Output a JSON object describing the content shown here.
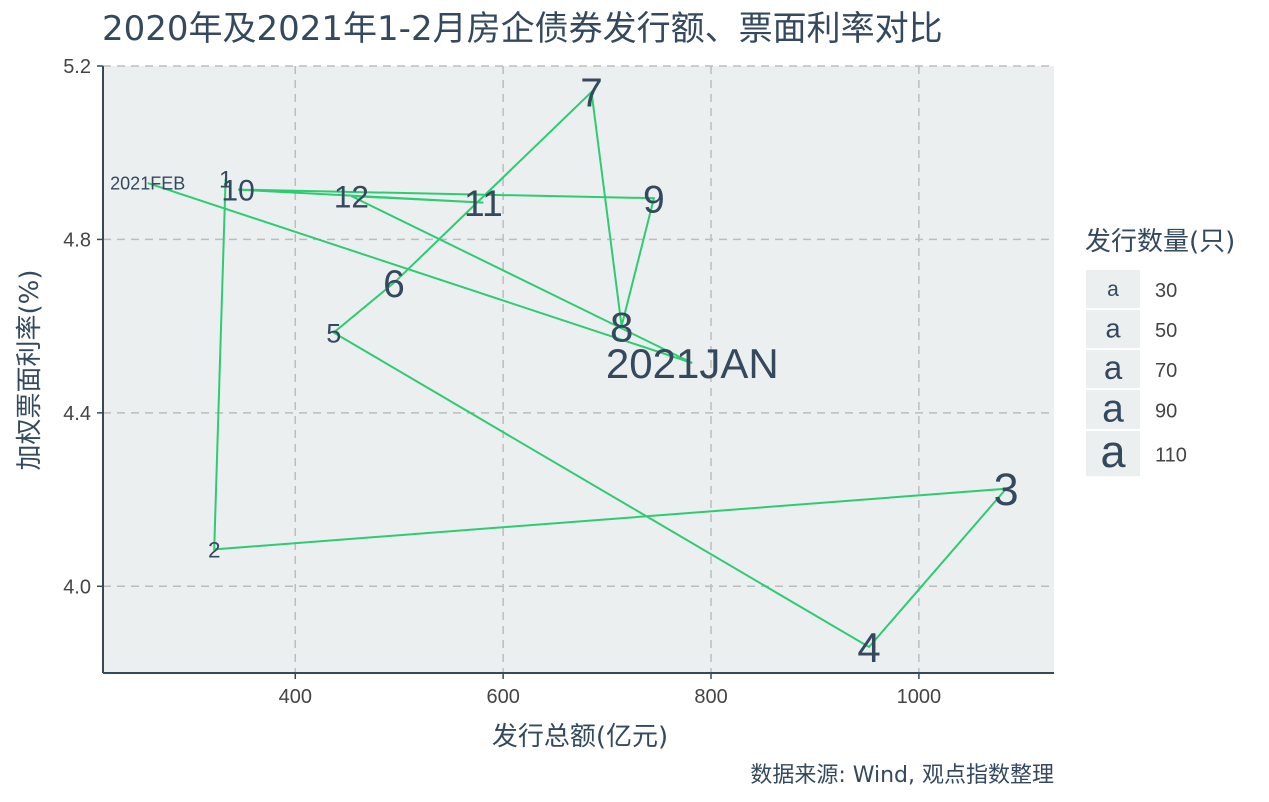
{
  "chart_data": {
    "type": "scatter",
    "title": "2020年及2021年1-2月房企债券发行额、票面利率对比",
    "xlabel": "发行总额(亿元)",
    "ylabel": "加权票面利率(%)",
    "caption": "数据来源: Wind, 观点指数整理",
    "xlim": [
      215,
      1130
    ],
    "ylim": [
      3.8,
      5.2
    ],
    "x_ticks": [
      400,
      600,
      800,
      1000
    ],
    "x_tick_labels": [
      "400",
      "600",
      "800",
      "1000"
    ],
    "y_ticks": [
      4.0,
      4.4,
      4.8,
      5.2
    ],
    "y_tick_labels": [
      "4.0",
      "4.4",
      "4.8",
      "5.2"
    ],
    "grid": true,
    "connected_path": true,
    "line_color": "#2ecc71",
    "text_color": "#34495e",
    "panel_color": "#ebeff0",
    "legend": {
      "title": "发行数量(只)",
      "key_glyph": "a",
      "placement": "right",
      "entries": [
        {
          "label": "30",
          "size": 30
        },
        {
          "label": "50",
          "size": 50
        },
        {
          "label": "70",
          "size": 70
        },
        {
          "label": "90",
          "size": 90
        },
        {
          "label": "110",
          "size": 110
        }
      ]
    },
    "points": [
      {
        "label": "1",
        "x": 333,
        "y": 4.94,
        "count": 40
      },
      {
        "label": "2",
        "x": 322,
        "y": 4.085,
        "count": 35
      },
      {
        "label": "3",
        "x": 1084,
        "y": 4.225,
        "count": 110
      },
      {
        "label": "4",
        "x": 952,
        "y": 3.86,
        "count": 100
      },
      {
        "label": "5",
        "x": 437,
        "y": 4.585,
        "count": 50
      },
      {
        "label": "6",
        "x": 495,
        "y": 4.7,
        "count": 90
      },
      {
        "label": "7",
        "x": 685,
        "y": 5.14,
        "count": 95
      },
      {
        "label": "8",
        "x": 714,
        "y": 4.6,
        "count": 100
      },
      {
        "label": "9",
        "x": 745,
        "y": 4.895,
        "count": 90
      },
      {
        "label": "10",
        "x": 345,
        "y": 4.915,
        "count": 60
      },
      {
        "label": "11",
        "x": 581,
        "y": 4.885,
        "count": 85
      },
      {
        "label": "12",
        "x": 454,
        "y": 4.9,
        "count": 65
      },
      {
        "label": "2021JAN",
        "x": 782,
        "y": 4.515,
        "count": 100
      },
      {
        "label": "2021FEB",
        "x": 258,
        "y": 4.93,
        "count": 20
      }
    ]
  }
}
